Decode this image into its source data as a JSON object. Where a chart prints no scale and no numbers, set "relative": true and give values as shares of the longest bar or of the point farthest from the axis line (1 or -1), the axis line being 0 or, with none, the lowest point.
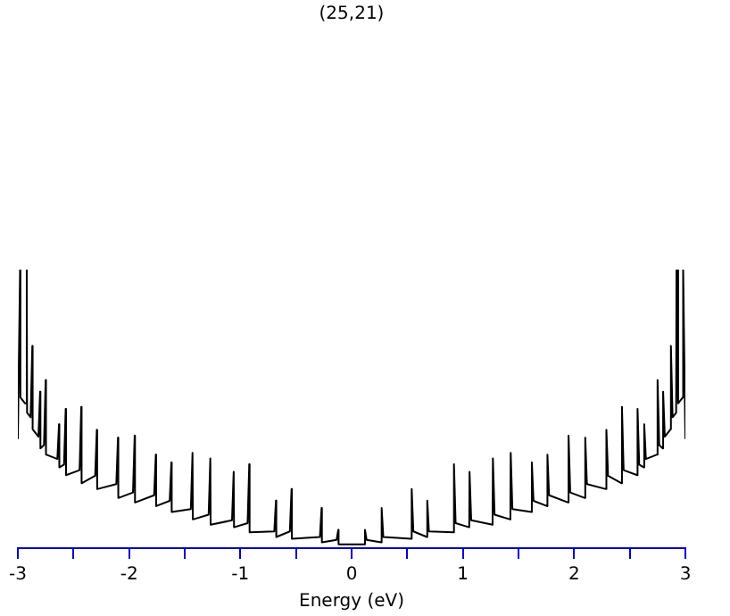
{
  "chart_data": {
    "type": "line",
    "title": "(25,21)",
    "xlabel": "Energy (eV)",
    "relative": true,
    "color": "#000000",
    "grid": false,
    "legend": false,
    "marker": "none",
    "line_style": "solid",
    "tick_labels": "x",
    "xlim": [
      -3,
      3
    ],
    "xticks": [
      -3,
      {
        "value": -2.5,
        "label": null
      },
      -2,
      {
        "value": -1.5,
        "label": null
      },
      -1,
      {
        "value": -0.5,
        "label": null
      },
      0,
      {
        "value": 0.5,
        "label": null
      },
      1,
      {
        "value": 1.5,
        "label": null
      },
      2,
      {
        "value": 2.5,
        "label": null
      },
      3
    ],
    "x": [
      -3.0,
      -2.98,
      -2.977,
      -2.935,
      -2.92,
      -2.917,
      -2.885,
      -2.87,
      -2.867,
      -2.815,
      -2.8,
      -2.797,
      -2.765,
      -2.75,
      -2.747,
      -2.645,
      -2.63,
      -2.627,
      -2.585,
      -2.57,
      -2.567,
      -2.445,
      -2.43,
      -2.427,
      -2.305,
      -2.29,
      -2.287,
      -2.115,
      -2.1,
      -2.097,
      -1.965,
      -1.95,
      -1.947,
      -1.775,
      -1.76,
      -1.757,
      -1.635,
      -1.62,
      -1.617,
      -1.445,
      -1.43,
      -1.427,
      -1.285,
      -1.27,
      -1.267,
      -1.075,
      -1.06,
      -1.057,
      -0.935,
      -0.92,
      -0.917,
      -0.695,
      -0.68,
      -0.677,
      -0.555,
      -0.54,
      -0.537,
      -0.285,
      -0.27,
      -0.267,
      -0.135,
      -0.12,
      -0.117,
      0,
      0.117,
      0.12,
      0.135,
      0.267,
      0.27,
      0.285,
      0.537,
      0.54,
      0.555,
      0.677,
      0.68,
      0.695,
      0.917,
      0.92,
      0.935,
      1.057,
      1.06,
      1.075,
      1.267,
      1.27,
      1.285,
      1.427,
      1.43,
      1.445,
      1.617,
      1.62,
      1.635,
      1.757,
      1.76,
      1.775,
      1.947,
      1.95,
      1.965,
      2.097,
      2.1,
      2.115,
      2.287,
      2.29,
      2.305,
      2.427,
      2.43,
      2.445,
      2.567,
      2.57,
      2.585,
      2.627,
      2.63,
      2.645,
      2.747,
      2.75,
      2.765,
      2.797,
      2.8,
      2.815,
      2.867,
      2.87,
      2.885,
      2.917,
      2.92,
      2.935,
      2.977,
      2.98,
      3.0
    ],
    "values": [
      0.392,
      1,
      0.541,
      0.52,
      1,
      0.486,
      0.47,
      0.726,
      0.427,
      0.4,
      0.562,
      0.358,
      0.37,
      0.603,
      0.336,
      0.32,
      0.445,
      0.29,
      0.3,
      0.5,
      0.262,
      0.28,
      0.507,
      0.233,
      0.26,
      0.425,
      0.212,
      0.23,
      0.397,
      0.18,
      0.2,
      0.404,
      0.164,
      0.19,
      0.336,
      0.151,
      0.17,
      0.308,
      0.13,
      0.14,
      0.342,
      0.103,
      0.12,
      0.322,
      0.084,
      0.1,
      0.274,
      0.075,
      0.09,
      0.301,
      0.057,
      0.06,
      0.171,
      0.04,
      0.06,
      0.212,
      0.034,
      0.04,
      0.144,
      0.021,
      0.03,
      0.066,
      0.014,
      0.014,
      0.014,
      0.066,
      0.03,
      0.021,
      0.144,
      0.04,
      0.034,
      0.212,
      0.06,
      0.04,
      0.171,
      0.06,
      0.057,
      0.301,
      0.09,
      0.075,
      0.274,
      0.1,
      0.084,
      0.322,
      0.12,
      0.103,
      0.342,
      0.14,
      0.13,
      0.308,
      0.17,
      0.151,
      0.336,
      0.19,
      0.164,
      0.404,
      0.2,
      0.18,
      0.397,
      0.23,
      0.212,
      0.425,
      0.26,
      0.233,
      0.507,
      0.28,
      0.262,
      0.5,
      0.3,
      0.29,
      0.445,
      0.32,
      0.336,
      0.603,
      0.37,
      0.358,
      0.562,
      0.4,
      0.427,
      0.726,
      0.47,
      0.486,
      1,
      0.52,
      0.541,
      1,
      0.392
    ]
  }
}
